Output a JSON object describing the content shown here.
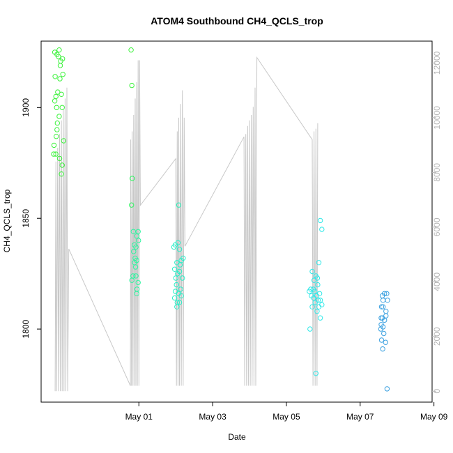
{
  "chart_data": {
    "type": "scatter",
    "title": "ATOM4 Southbound CH4_QCLS_trop",
    "xlabel": "Date",
    "ylabel": "CH4_QCLS_trop",
    "x_unit": "days since April 30 00:00 (date axis)",
    "xlim": [
      -1.65,
      8.95
    ],
    "ylim": [
      1767,
      1930
    ],
    "y_ticks": [
      1800,
      1850,
      1900
    ],
    "x_ticks": [
      {
        "value": 1,
        "label": "May 01"
      },
      {
        "value": 3,
        "label": "May 03"
      },
      {
        "value": 5,
        "label": "May 05"
      },
      {
        "value": 7,
        "label": "May 07"
      },
      {
        "value": 9,
        "label": "May 09"
      }
    ],
    "y2_lim": [
      -400,
      12800
    ],
    "y2_ticks": [
      0,
      2000,
      4000,
      6000,
      8000,
      10000,
      12000
    ],
    "grid": false,
    "colors": {
      "altitude_line": "#c8c8c8",
      "axis": "#000000",
      "right_axis": "#b5b5b5"
    },
    "altitude_line": {
      "points": [
        [
          -1.27,
          0
        ],
        [
          -1.25,
          8400
        ],
        [
          -1.23,
          0
        ],
        [
          -1.2,
          8900
        ],
        [
          -1.18,
          0
        ],
        [
          -1.15,
          9400
        ],
        [
          -1.13,
          0
        ],
        [
          -1.1,
          9900
        ],
        [
          -1.08,
          0
        ],
        [
          -1.05,
          10300
        ],
        [
          -1.03,
          0
        ],
        [
          -1.0,
          10700
        ],
        [
          -0.98,
          0
        ],
        [
          -0.95,
          11100
        ],
        [
          -0.93,
          0
        ],
        [
          -0.9,
          5200
        ],
        [
          0.77,
          200
        ],
        [
          0.78,
          9200
        ],
        [
          0.8,
          200
        ],
        [
          0.82,
          9500
        ],
        [
          0.84,
          200
        ],
        [
          0.86,
          10100
        ],
        [
          0.88,
          200
        ],
        [
          0.9,
          10700
        ],
        [
          0.92,
          200
        ],
        [
          0.94,
          11300
        ],
        [
          0.96,
          200
        ],
        [
          0.98,
          12100
        ],
        [
          1.0,
          200
        ],
        [
          1.02,
          12100
        ],
        [
          1.04,
          6800
        ],
        [
          2.0,
          8500
        ],
        [
          2.02,
          200
        ],
        [
          2.04,
          9500
        ],
        [
          2.06,
          200
        ],
        [
          2.08,
          10000
        ],
        [
          2.1,
          200
        ],
        [
          2.13,
          10500
        ],
        [
          2.15,
          200
        ],
        [
          2.18,
          11000
        ],
        [
          2.2,
          200
        ],
        [
          2.23,
          10000
        ],
        [
          2.25,
          5300
        ],
        [
          3.85,
          9300
        ],
        [
          3.87,
          200
        ],
        [
          3.9,
          9400
        ],
        [
          3.92,
          200
        ],
        [
          3.95,
          9700
        ],
        [
          3.97,
          200
        ],
        [
          4.0,
          9900
        ],
        [
          4.02,
          200
        ],
        [
          4.05,
          10100
        ],
        [
          4.07,
          200
        ],
        [
          4.1,
          10400
        ],
        [
          4.12,
          200
        ],
        [
          4.15,
          11100
        ],
        [
          4.17,
          200
        ],
        [
          4.2,
          12200
        ],
        [
          5.7,
          9200
        ],
        [
          5.72,
          200
        ],
        [
          5.75,
          9500
        ],
        [
          5.78,
          200
        ],
        [
          5.8,
          9600
        ],
        [
          5.83,
          200
        ],
        [
          5.85,
          9800
        ]
      ]
    },
    "scatter_points": [
      {
        "x": -1.28,
        "y": 1925,
        "c": "#3cf23c"
      },
      {
        "x": -1.22,
        "y": 1924,
        "c": "#3cf23c"
      },
      {
        "x": -1.16,
        "y": 1926,
        "c": "#3cf23c"
      },
      {
        "x": -1.12,
        "y": 1921,
        "c": "#3cf23c"
      },
      {
        "x": -1.07,
        "y": 1922,
        "c": "#3cf23c"
      },
      {
        "x": -1.18,
        "y": 1923,
        "c": "#3cf23c"
      },
      {
        "x": -1.13,
        "y": 1919,
        "c": "#3cf23c"
      },
      {
        "x": -1.27,
        "y": 1914,
        "c": "#3cf23c"
      },
      {
        "x": -1.14,
        "y": 1913,
        "c": "#3cf23c"
      },
      {
        "x": -1.06,
        "y": 1915,
        "c": "#3cf23c"
      },
      {
        "x": -1.2,
        "y": 1907,
        "c": "#3cf23c"
      },
      {
        "x": -1.1,
        "y": 1906,
        "c": "#3cf23c"
      },
      {
        "x": -1.25,
        "y": 1905,
        "c": "#3cf23c"
      },
      {
        "x": -1.28,
        "y": 1903,
        "c": "#3cf23c"
      },
      {
        "x": -1.23,
        "y": 1900,
        "c": "#3cf23c"
      },
      {
        "x": -1.08,
        "y": 1900,
        "c": "#3cf23c"
      },
      {
        "x": -1.16,
        "y": 1896,
        "c": "#3cf23c"
      },
      {
        "x": -1.21,
        "y": 1893,
        "c": "#3cf23c"
      },
      {
        "x": -1.22,
        "y": 1890,
        "c": "#3cf23c"
      },
      {
        "x": -1.24,
        "y": 1887,
        "c": "#3cf23c"
      },
      {
        "x": -1.04,
        "y": 1885,
        "c": "#3cf23c"
      },
      {
        "x": -1.3,
        "y": 1883,
        "c": "#3cf23c"
      },
      {
        "x": -1.25,
        "y": 1879,
        "c": "#3cf23c"
      },
      {
        "x": -1.31,
        "y": 1879,
        "c": "#3cf23c"
      },
      {
        "x": -1.15,
        "y": 1877,
        "c": "#3cf23c"
      },
      {
        "x": -1.08,
        "y": 1874,
        "c": "#3cf23c"
      },
      {
        "x": -1.1,
        "y": 1870,
        "c": "#3cf23c"
      },
      {
        "x": 0.79,
        "y": 1926,
        "c": "#3cf23c"
      },
      {
        "x": 0.81,
        "y": 1910,
        "c": "#3cf23c"
      },
      {
        "x": 0.82,
        "y": 1868,
        "c": "#2ef55f"
      },
      {
        "x": 0.8,
        "y": 1856,
        "c": "#2ef55f"
      },
      {
        "x": 0.85,
        "y": 1844,
        "c": "#2ef5a0"
      },
      {
        "x": 0.98,
        "y": 1844,
        "c": "#2ef5a0"
      },
      {
        "x": 0.94,
        "y": 1842,
        "c": "#2ef5a0"
      },
      {
        "x": 0.99,
        "y": 1840,
        "c": "#2ef5a0"
      },
      {
        "x": 0.88,
        "y": 1838,
        "c": "#2ef5a0"
      },
      {
        "x": 0.92,
        "y": 1837,
        "c": "#2ef5a0"
      },
      {
        "x": 0.86,
        "y": 1835,
        "c": "#2ef5a0"
      },
      {
        "x": 0.9,
        "y": 1832,
        "c": "#2ef5a0"
      },
      {
        "x": 0.94,
        "y": 1831,
        "c": "#2ef5a0"
      },
      {
        "x": 0.88,
        "y": 1830,
        "c": "#2ef5a0"
      },
      {
        "x": 0.91,
        "y": 1828,
        "c": "#2ef5a0"
      },
      {
        "x": 0.84,
        "y": 1824,
        "c": "#2ef5a0"
      },
      {
        "x": 0.92,
        "y": 1824,
        "c": "#2ef5a0"
      },
      {
        "x": 0.81,
        "y": 1822,
        "c": "#2ef5a0"
      },
      {
        "x": 0.98,
        "y": 1821,
        "c": "#2ef5a0"
      },
      {
        "x": 0.95,
        "y": 1818,
        "c": "#2ef5a0"
      },
      {
        "x": 0.94,
        "y": 1816,
        "c": "#2ef5a0"
      },
      {
        "x": 2.08,
        "y": 1856,
        "c": "#28f0b8"
      },
      {
        "x": 1.95,
        "y": 1837,
        "c": "#28f0c8"
      },
      {
        "x": 1.99,
        "y": 1838,
        "c": "#28f0c8"
      },
      {
        "x": 2.06,
        "y": 1839,
        "c": "#28f0c8"
      },
      {
        "x": 2.1,
        "y": 1836,
        "c": "#28f0c8"
      },
      {
        "x": 2.2,
        "y": 1832,
        "c": "#28f0c8"
      },
      {
        "x": 2.15,
        "y": 1831,
        "c": "#28f0c8"
      },
      {
        "x": 2.03,
        "y": 1830,
        "c": "#28f0c8"
      },
      {
        "x": 2.12,
        "y": 1829,
        "c": "#28f0c8"
      },
      {
        "x": 1.97,
        "y": 1827,
        "c": "#28f0c8"
      },
      {
        "x": 2.1,
        "y": 1826,
        "c": "#28f0c8"
      },
      {
        "x": 2.05,
        "y": 1825,
        "c": "#28f0c8"
      },
      {
        "x": 2.0,
        "y": 1823,
        "c": "#28f0c8"
      },
      {
        "x": 2.18,
        "y": 1823,
        "c": "#28f0c8"
      },
      {
        "x": 2.02,
        "y": 1820,
        "c": "#28f0c8"
      },
      {
        "x": 2.13,
        "y": 1818,
        "c": "#28f0c8"
      },
      {
        "x": 1.99,
        "y": 1817,
        "c": "#28f0c8"
      },
      {
        "x": 2.08,
        "y": 1816,
        "c": "#28f0c8"
      },
      {
        "x": 2.15,
        "y": 1815,
        "c": "#28f0c8"
      },
      {
        "x": 1.97,
        "y": 1814,
        "c": "#28f0c8"
      },
      {
        "x": 2.04,
        "y": 1812,
        "c": "#28f0c8"
      },
      {
        "x": 2.1,
        "y": 1812,
        "c": "#28f0c8"
      },
      {
        "x": 2.03,
        "y": 1810,
        "c": "#28f0c8"
      },
      {
        "x": 5.92,
        "y": 1849,
        "c": "#2ee8e8"
      },
      {
        "x": 5.96,
        "y": 1845,
        "c": "#2ee8e8"
      },
      {
        "x": 5.88,
        "y": 1830,
        "c": "#2ee8e8"
      },
      {
        "x": 5.7,
        "y": 1826,
        "c": "#2ee8e8"
      },
      {
        "x": 5.8,
        "y": 1824,
        "c": "#2ee8e8"
      },
      {
        "x": 5.75,
        "y": 1822,
        "c": "#2ee8e8"
      },
      {
        "x": 5.84,
        "y": 1823,
        "c": "#2ee8e8"
      },
      {
        "x": 5.85,
        "y": 1820,
        "c": "#2ee8e8"
      },
      {
        "x": 5.73,
        "y": 1818,
        "c": "#2ee8e8"
      },
      {
        "x": 5.66,
        "y": 1818,
        "c": "#2ee8e8"
      },
      {
        "x": 5.77,
        "y": 1817,
        "c": "#2ee8e8"
      },
      {
        "x": 5.62,
        "y": 1817,
        "c": "#2ee8e8"
      },
      {
        "x": 5.9,
        "y": 1816,
        "c": "#2ee8e8"
      },
      {
        "x": 5.82,
        "y": 1815,
        "c": "#2ee8e8"
      },
      {
        "x": 5.68,
        "y": 1815,
        "c": "#2ee8e8"
      },
      {
        "x": 5.74,
        "y": 1814,
        "c": "#2ee8e8"
      },
      {
        "x": 5.86,
        "y": 1813,
        "c": "#2ee8e8"
      },
      {
        "x": 5.92,
        "y": 1813,
        "c": "#2ee8e8"
      },
      {
        "x": 5.78,
        "y": 1812,
        "c": "#2ee8e8"
      },
      {
        "x": 5.96,
        "y": 1811,
        "c": "#2ee8e8"
      },
      {
        "x": 5.7,
        "y": 1810,
        "c": "#2ee8e8"
      },
      {
        "x": 5.88,
        "y": 1810,
        "c": "#2ee8e8"
      },
      {
        "x": 5.83,
        "y": 1808,
        "c": "#2ee8e8"
      },
      {
        "x": 5.92,
        "y": 1805,
        "c": "#2ee8e8"
      },
      {
        "x": 5.64,
        "y": 1800,
        "c": "#2ee8e8"
      },
      {
        "x": 5.8,
        "y": 1780,
        "c": "#2ee8e8"
      },
      {
        "x": 7.66,
        "y": 1816,
        "c": "#3aa0e0"
      },
      {
        "x": 7.72,
        "y": 1816,
        "c": "#3aa0e0"
      },
      {
        "x": 7.6,
        "y": 1815,
        "c": "#3aa0e0"
      },
      {
        "x": 7.74,
        "y": 1813,
        "c": "#3aa0e0"
      },
      {
        "x": 7.62,
        "y": 1813,
        "c": "#3aa0e0"
      },
      {
        "x": 7.58,
        "y": 1810,
        "c": "#3aa0e0"
      },
      {
        "x": 7.62,
        "y": 1810,
        "c": "#3aa0e0"
      },
      {
        "x": 7.7,
        "y": 1808,
        "c": "#3aa0e0"
      },
      {
        "x": 7.57,
        "y": 1805,
        "c": "#3aa0e0"
      },
      {
        "x": 7.6,
        "y": 1805,
        "c": "#3aa0e0"
      },
      {
        "x": 7.7,
        "y": 1806,
        "c": "#3aa0e0"
      },
      {
        "x": 7.66,
        "y": 1804,
        "c": "#3aa0e0"
      },
      {
        "x": 7.57,
        "y": 1802,
        "c": "#3aa0e0"
      },
      {
        "x": 7.62,
        "y": 1801,
        "c": "#3aa0e0"
      },
      {
        "x": 7.56,
        "y": 1800,
        "c": "#3aa0e0"
      },
      {
        "x": 7.64,
        "y": 1798,
        "c": "#3aa0e0"
      },
      {
        "x": 7.58,
        "y": 1795,
        "c": "#3aa0e0"
      },
      {
        "x": 7.69,
        "y": 1794,
        "c": "#3aa0e0"
      },
      {
        "x": 7.61,
        "y": 1791,
        "c": "#3aa0e0"
      },
      {
        "x": 7.73,
        "y": 1773,
        "c": "#3aa0e0"
      }
    ]
  }
}
